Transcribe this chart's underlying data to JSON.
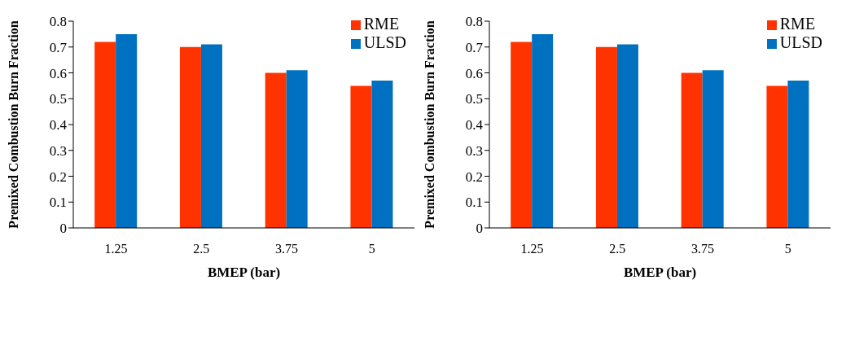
{
  "chart_data": [
    {
      "type": "bar",
      "categories": [
        "1.25",
        "2.5",
        "3.75",
        "5"
      ],
      "xlabel": "BMEP (bar)",
      "ylabel": "Premixed Combustion Burn Fraction",
      "series": [
        {
          "name": "RME",
          "color": "#ff3300",
          "values": [
            0.72,
            0.7,
            0.6,
            0.55
          ]
        },
        {
          "name": "ULSD",
          "color": "#0070c0",
          "values": [
            0.75,
            0.71,
            0.61,
            0.57
          ]
        }
      ],
      "ylim": [
        0,
        0.8
      ],
      "yticks": [
        0,
        0.1,
        0.2,
        0.3,
        0.4,
        0.5,
        0.6,
        0.7,
        0.8
      ],
      "grid": false,
      "legend": "top right"
    },
    {
      "type": "bar",
      "categories": [
        "1.25",
        "2.5",
        "3.75",
        "5"
      ],
      "xlabel": "BMEP (bar)",
      "ylabel": "Premixed Combustion Burn Fraction",
      "series": [
        {
          "name": "RME",
          "color": "#ff3300",
          "values": [
            0.72,
            0.7,
            0.6,
            0.55
          ]
        },
        {
          "name": "ULSD",
          "color": "#0070c0",
          "values": [
            0.75,
            0.71,
            0.61,
            0.57
          ]
        }
      ],
      "ylim": [
        0,
        0.8
      ],
      "yticks": [
        0,
        0.1,
        0.2,
        0.3,
        0.4,
        0.5,
        0.6,
        0.7,
        0.8
      ],
      "grid": false,
      "legend": "top right"
    }
  ]
}
